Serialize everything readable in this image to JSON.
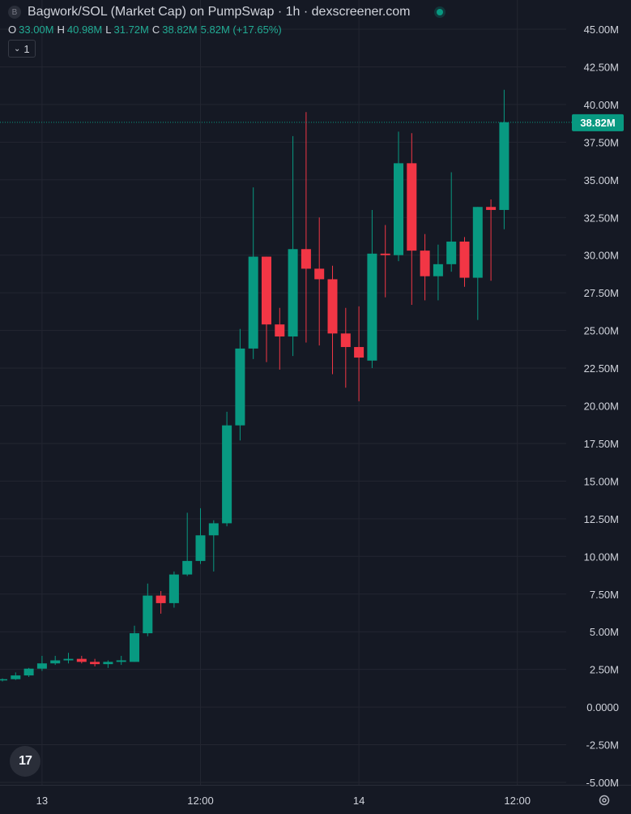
{
  "header": {
    "logo_letter": "B",
    "title": "Bagwork/SOL (Market Cap) on PumpSwap · 1h · dexscreener.com",
    "ohlc": [
      {
        "k": "O",
        "v": "33.00M"
      },
      {
        "k": "H",
        "v": "40.98M"
      },
      {
        "k": "L",
        "v": "31.72M"
      },
      {
        "k": "C",
        "v": "38.82M"
      },
      {
        "k": "",
        "v": "5.82M (+17.65%)"
      }
    ],
    "interval": "1"
  },
  "tv_logo": "17",
  "colors": {
    "background": "#151924",
    "grid": "#232631",
    "up": "#089981",
    "down": "#f23645",
    "axis_text": "#d1d4dc",
    "last_price": "#089981"
  },
  "chart_data": {
    "type": "candlestick",
    "y_unit": "M",
    "ylim": [
      -5,
      45
    ],
    "y_ticks": [
      "45.00M",
      "42.50M",
      "40.00M",
      "37.50M",
      "35.00M",
      "32.50M",
      "30.00M",
      "27.50M",
      "25.00M",
      "22.50M",
      "20.00M",
      "17.50M",
      "15.00M",
      "12.50M",
      "10.00M",
      "7.50M",
      "5.00M",
      "2.50M",
      "0.0000",
      "-2.50M",
      "-5.00M"
    ],
    "y_tick_values": [
      45,
      42.5,
      40,
      37.5,
      35,
      32.5,
      30,
      27.5,
      25,
      22.5,
      20,
      17.5,
      15,
      12.5,
      10,
      7.5,
      5,
      2.5,
      0,
      -2.5,
      -5
    ],
    "x_ticks": [
      {
        "label": "13",
        "index": 3
      },
      {
        "label": "12:00",
        "index": 15
      },
      {
        "label": "14",
        "index": 27
      },
      {
        "label": "12:00",
        "index": 39
      }
    ],
    "last_value": 38.82,
    "last_value_label": "38.82M",
    "candles": [
      {
        "o": 1.8,
        "h": 1.9,
        "l": 1.7,
        "c": 1.85
      },
      {
        "o": 1.85,
        "h": 2.3,
        "l": 1.8,
        "c": 2.1
      },
      {
        "o": 2.1,
        "h": 2.6,
        "l": 2.0,
        "c": 2.55
      },
      {
        "o": 2.55,
        "h": 3.4,
        "l": 2.4,
        "c": 2.9
      },
      {
        "o": 2.9,
        "h": 3.4,
        "l": 2.8,
        "c": 3.1
      },
      {
        "o": 3.1,
        "h": 3.6,
        "l": 2.9,
        "c": 3.2
      },
      {
        "o": 3.2,
        "h": 3.4,
        "l": 2.9,
        "c": 3.0
      },
      {
        "o": 3.0,
        "h": 3.2,
        "l": 2.7,
        "c": 2.85
      },
      {
        "o": 2.85,
        "h": 3.1,
        "l": 2.6,
        "c": 3.0
      },
      {
        "o": 3.0,
        "h": 3.4,
        "l": 2.8,
        "c": 3.1
      },
      {
        "o": 3.0,
        "h": 5.4,
        "l": 3.0,
        "c": 4.9
      },
      {
        "o": 4.9,
        "h": 8.2,
        "l": 4.7,
        "c": 7.4
      },
      {
        "o": 7.4,
        "h": 7.7,
        "l": 6.2,
        "c": 6.9
      },
      {
        "o": 6.9,
        "h": 9.0,
        "l": 6.6,
        "c": 8.8
      },
      {
        "o": 8.8,
        "h": 12.9,
        "l": 8.7,
        "c": 9.7
      },
      {
        "o": 9.7,
        "h": 13.2,
        "l": 9.5,
        "c": 11.4
      },
      {
        "o": 11.4,
        "h": 12.4,
        "l": 9.0,
        "c": 12.2
      },
      {
        "o": 12.2,
        "h": 19.6,
        "l": 12.0,
        "c": 18.7
      },
      {
        "o": 18.7,
        "h": 25.1,
        "l": 17.7,
        "c": 23.8
      },
      {
        "o": 23.8,
        "h": 34.5,
        "l": 23.1,
        "c": 29.9
      },
      {
        "o": 29.9,
        "h": 29.9,
        "l": 22.9,
        "c": 25.4
      },
      {
        "o": 25.4,
        "h": 26.5,
        "l": 22.4,
        "c": 24.6
      },
      {
        "o": 24.6,
        "h": 37.9,
        "l": 23.3,
        "c": 30.4
      },
      {
        "o": 30.4,
        "h": 39.5,
        "l": 24.2,
        "c": 29.1
      },
      {
        "o": 29.1,
        "h": 32.5,
        "l": 24.0,
        "c": 28.4
      },
      {
        "o": 28.4,
        "h": 29.3,
        "l": 22.1,
        "c": 24.8
      },
      {
        "o": 24.8,
        "h": 26.5,
        "l": 21.2,
        "c": 23.9
      },
      {
        "o": 23.9,
        "h": 26.6,
        "l": 20.3,
        "c": 23.2
      },
      {
        "o": 23.0,
        "h": 33.0,
        "l": 22.5,
        "c": 30.1
      },
      {
        "o": 30.1,
        "h": 32.0,
        "l": 27.2,
        "c": 30.0
      },
      {
        "o": 30.0,
        "h": 38.2,
        "l": 29.6,
        "c": 36.1
      },
      {
        "o": 36.1,
        "h": 38.1,
        "l": 26.7,
        "c": 30.3
      },
      {
        "o": 30.3,
        "h": 31.4,
        "l": 27.0,
        "c": 28.6
      },
      {
        "o": 28.6,
        "h": 30.7,
        "l": 27.0,
        "c": 29.4
      },
      {
        "o": 29.4,
        "h": 35.5,
        "l": 28.9,
        "c": 30.9
      },
      {
        "o": 30.9,
        "h": 31.2,
        "l": 27.9,
        "c": 28.5
      },
      {
        "o": 28.5,
        "h": 33.2,
        "l": 25.7,
        "c": 33.2
      },
      {
        "o": 33.2,
        "h": 33.7,
        "l": 28.3,
        "c": 33.0
      },
      {
        "o": 33.0,
        "h": 40.98,
        "l": 31.72,
        "c": 38.82
      }
    ]
  }
}
